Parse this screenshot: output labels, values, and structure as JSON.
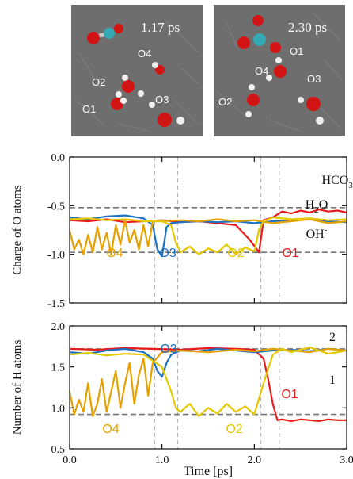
{
  "snapshots": [
    {
      "time_label": "1.17 ps",
      "atom_labels": [
        "O4",
        "O2",
        "O1",
        "O3"
      ]
    },
    {
      "time_label": "2.30 ps",
      "atom_labels": [
        "O1",
        "O4",
        "O3",
        "O2"
      ]
    }
  ],
  "chart_data": [
    {
      "type": "line",
      "title": "",
      "xlabel": "Time [ps]",
      "ylabel": "Charge of O atoms",
      "xlim": [
        0.0,
        3.0
      ],
      "ylim": [
        -1.5,
        0.0
      ],
      "xticks": [
        "0.0",
        "1.0",
        "2.0",
        "3.0"
      ],
      "yticks": [
        "0.0",
        "-0.5",
        "-1.0",
        "-1.5"
      ],
      "reference_lines": [
        -0.52,
        -0.98
      ],
      "event_lines_x": [
        0.92,
        1.17,
        2.07,
        2.27
      ],
      "annotations": [
        {
          "text": "HCO",
          "sub": "3",
          "sup": "-"
        },
        {
          "text": "H",
          "sub": "2",
          "tail": "O"
        },
        {
          "text": "OH",
          "sup": "-"
        }
      ],
      "series_labels": [
        {
          "text": "O4",
          "color": "#e6a100"
        },
        {
          "text": "O3",
          "color": "#1a73c4"
        },
        {
          "text": "O2",
          "color": "#e6c800"
        },
        {
          "text": "O1",
          "color": "#e81a1a"
        }
      ],
      "series": [
        {
          "color": "#e81a1a",
          "x": [
            0,
            0.2,
            0.4,
            0.6,
            0.8,
            1.0,
            1.2,
            1.4,
            1.6,
            1.8,
            1.95,
            2.05,
            2.1,
            2.2,
            2.3,
            2.4,
            2.5,
            2.6,
            2.7,
            2.8,
            2.9,
            3.0
          ],
          "y": [
            -0.65,
            -0.66,
            -0.64,
            -0.67,
            -0.66,
            -0.65,
            -0.67,
            -0.66,
            -0.68,
            -0.7,
            -0.85,
            -0.98,
            -0.65,
            -0.62,
            -0.56,
            -0.58,
            -0.55,
            -0.57,
            -0.54,
            -0.56,
            -0.55,
            -0.57
          ]
        },
        {
          "color": "#1a73c4",
          "x": [
            0,
            0.2,
            0.4,
            0.6,
            0.8,
            0.9,
            0.95,
            1.0,
            1.05,
            1.1,
            1.2,
            1.4,
            1.6,
            1.8,
            2.0,
            2.2,
            2.4,
            2.6,
            2.8,
            3.0
          ],
          "y": [
            -0.62,
            -0.64,
            -0.61,
            -0.6,
            -0.63,
            -0.7,
            -0.95,
            -1.02,
            -0.72,
            -0.68,
            -0.67,
            -0.66,
            -0.67,
            -0.66,
            -0.68,
            -0.66,
            -0.65,
            -0.64,
            -0.66,
            -0.67
          ]
        },
        {
          "color": "#e6a100",
          "x": [
            0,
            0.05,
            0.1,
            0.15,
            0.2,
            0.25,
            0.3,
            0.35,
            0.4,
            0.45,
            0.5,
            0.55,
            0.6,
            0.65,
            0.7,
            0.75,
            0.8,
            0.85,
            0.9,
            1.0,
            1.2,
            1.4,
            1.6,
            1.8,
            2.0,
            2.2,
            2.4,
            2.6,
            2.8,
            3.0
          ],
          "y": [
            -0.75,
            -0.95,
            -0.85,
            -1.0,
            -0.8,
            -0.98,
            -0.72,
            -0.95,
            -0.78,
            -1.0,
            -0.7,
            -0.9,
            -0.65,
            -0.88,
            -0.75,
            -0.95,
            -0.7,
            -0.92,
            -0.66,
            -0.66,
            -0.65,
            -0.66,
            -0.64,
            -0.66,
            -0.65,
            -0.68,
            -0.66,
            -0.64,
            -0.68,
            -0.66
          ]
        },
        {
          "color": "#e6c800",
          "x": [
            0,
            0.2,
            0.4,
            0.6,
            0.8,
            1.0,
            1.1,
            1.15,
            1.2,
            1.3,
            1.4,
            1.5,
            1.6,
            1.7,
            1.8,
            1.9,
            2.0,
            2.05,
            2.1,
            2.2,
            2.4,
            2.6,
            2.8,
            3.0
          ],
          "y": [
            -0.64,
            -0.63,
            -0.65,
            -0.64,
            -0.66,
            -0.66,
            -0.7,
            -0.88,
            -0.98,
            -0.92,
            -1.0,
            -0.94,
            -0.98,
            -0.9,
            -1.0,
            -0.93,
            -0.97,
            -0.75,
            -0.66,
            -0.62,
            -0.64,
            -0.63,
            -0.65,
            -0.64
          ]
        }
      ]
    },
    {
      "type": "line",
      "title": "",
      "xlabel": "Time [ps]",
      "ylabel": "Number of H atoms",
      "xlim": [
        0.0,
        3.0
      ],
      "ylim": [
        0.5,
        2.0
      ],
      "xticks": [
        "0.0",
        "1.0",
        "2.0",
        "3.0"
      ],
      "yticks": [
        "0.5",
        "1.0",
        "1.5",
        "2.0"
      ],
      "reference_lines": [
        1.72,
        0.92
      ],
      "event_lines_x": [
        0.92,
        1.17,
        2.07,
        2.27
      ],
      "annotations": [
        {
          "text": "2"
        },
        {
          "text": "1"
        }
      ],
      "series_labels": [
        {
          "text": "O3",
          "color": "#1a73c4"
        },
        {
          "text": "O4",
          "color": "#e6a100"
        },
        {
          "text": "O2",
          "color": "#e6c800"
        },
        {
          "text": "O1",
          "color": "#e81a1a"
        }
      ],
      "series": [
        {
          "color": "#e81a1a",
          "x": [
            0,
            0.3,
            0.6,
            0.9,
            1.2,
            1.5,
            1.8,
            2.0,
            2.1,
            2.15,
            2.2,
            2.25,
            2.3,
            2.4,
            2.5,
            2.6,
            2.7,
            2.8,
            2.9,
            3.0
          ],
          "y": [
            1.72,
            1.71,
            1.73,
            1.72,
            1.71,
            1.73,
            1.72,
            1.71,
            1.6,
            1.35,
            1.05,
            0.85,
            0.86,
            0.84,
            0.86,
            0.85,
            0.84,
            0.86,
            0.85,
            0.85
          ]
        },
        {
          "color": "#1a73c4",
          "x": [
            0,
            0.2,
            0.4,
            0.6,
            0.8,
            0.9,
            0.95,
            1.0,
            1.05,
            1.1,
            1.2,
            1.4,
            1.6,
            1.8,
            2.0,
            2.2,
            2.4,
            2.6,
            2.8,
            3.0
          ],
          "y": [
            1.68,
            1.66,
            1.7,
            1.72,
            1.68,
            1.6,
            1.45,
            1.38,
            1.55,
            1.65,
            1.7,
            1.69,
            1.72,
            1.7,
            1.68,
            1.7,
            1.71,
            1.69,
            1.72,
            1.7
          ]
        },
        {
          "color": "#e6a100",
          "x": [
            0,
            0.05,
            0.1,
            0.15,
            0.2,
            0.25,
            0.3,
            0.35,
            0.4,
            0.45,
            0.5,
            0.55,
            0.6,
            0.65,
            0.7,
            0.75,
            0.8,
            0.85,
            0.9,
            1.0,
            1.2,
            1.5,
            1.8,
            2.0,
            2.2,
            2.4,
            2.6,
            2.8,
            3.0
          ],
          "y": [
            1.2,
            0.92,
            1.1,
            0.95,
            1.3,
            0.9,
            1.05,
            1.35,
            0.95,
            1.2,
            1.45,
            1.0,
            1.3,
            1.55,
            1.05,
            1.4,
            1.6,
            1.15,
            1.55,
            1.68,
            1.7,
            1.68,
            1.71,
            1.69,
            1.72,
            1.7,
            1.68,
            1.72,
            1.7
          ]
        },
        {
          "color": "#e6c800",
          "x": [
            0,
            0.2,
            0.4,
            0.6,
            0.8,
            1.0,
            1.1,
            1.15,
            1.2,
            1.3,
            1.4,
            1.5,
            1.6,
            1.7,
            1.8,
            1.9,
            2.0,
            2.1,
            2.2,
            2.3,
            2.4,
            2.6,
            2.8,
            3.0
          ],
          "y": [
            1.65,
            1.67,
            1.64,
            1.66,
            1.65,
            1.5,
            1.2,
            1.0,
            0.95,
            1.05,
            0.9,
            1.0,
            0.93,
            1.05,
            0.95,
            1.02,
            0.92,
            1.3,
            1.65,
            1.72,
            1.68,
            1.74,
            1.66,
            1.7
          ]
        }
      ]
    }
  ]
}
